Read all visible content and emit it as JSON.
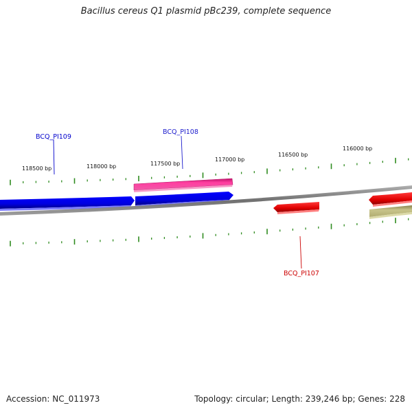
{
  "title": "Bacillus cereus Q1 plasmid pBc239, complete sequence",
  "footer": {
    "accession": "Accession: NC_011973",
    "stats": "Topology: circular; Length: 239,246 bp; Genes: 228"
  },
  "scale": {
    "color": "#2e8b1e",
    "ticks": [
      "118500 bp",
      "118000 bp",
      "117500 bp",
      "117000 bp",
      "116500 bp",
      "116000 bp"
    ]
  },
  "genes": [
    {
      "label": "BCQ_PI109",
      "color": "#0000cc"
    },
    {
      "label": "BCQ_PI108",
      "color": "#1a1acc"
    },
    {
      "label": "BCQ_PI107",
      "color": "#cc0000"
    }
  ],
  "colors": {
    "backbone": "#808080",
    "blue": "#0000ee",
    "pink": "#ee2d8c",
    "red": "#ee0000",
    "olive": "#b4b06a"
  }
}
